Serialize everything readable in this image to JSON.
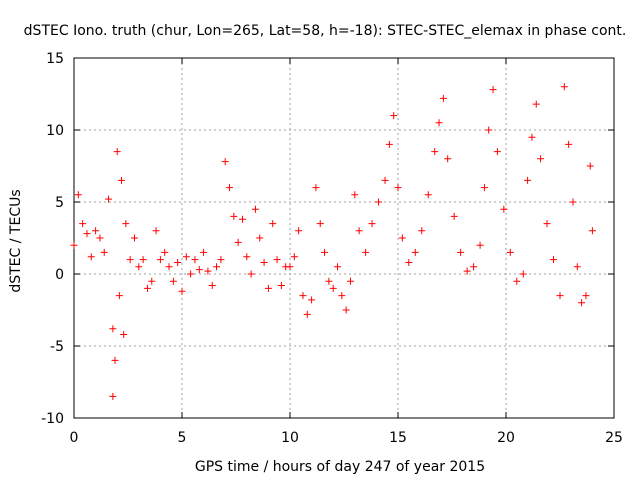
{
  "chart_data": {
    "type": "scatter",
    "title": "dSTEC Iono. truth (chur, Lon=265, Lat=58, h=-18): STEC-STEC_elemax in phase cont.",
    "xlabel": "GPS time / hours of day 247 of year 2015",
    "ylabel": "dSTEC  / TECUs",
    "xlim": [
      0,
      25
    ],
    "ylim": [
      -10,
      15
    ],
    "xticks": [
      0,
      5,
      10,
      15,
      20,
      25
    ],
    "yticks": [
      -10,
      -5,
      0,
      5,
      10,
      15
    ],
    "grid": true,
    "legend": "none",
    "marker": "plus",
    "series": [
      {
        "color": "#ff0000",
        "points": [
          [
            0.0,
            2.0
          ],
          [
            0.2,
            5.5
          ],
          [
            0.4,
            3.5
          ],
          [
            0.6,
            2.8
          ],
          [
            0.8,
            1.2
          ],
          [
            1.0,
            3.0
          ],
          [
            1.2,
            2.5
          ],
          [
            1.4,
            1.5
          ],
          [
            1.6,
            5.2
          ],
          [
            1.8,
            -3.8
          ],
          [
            1.8,
            -8.5
          ],
          [
            1.9,
            -6.0
          ],
          [
            2.0,
            8.5
          ],
          [
            2.1,
            -1.5
          ],
          [
            2.2,
            6.5
          ],
          [
            2.3,
            -4.2
          ],
          [
            2.4,
            3.5
          ],
          [
            2.6,
            1.0
          ],
          [
            2.8,
            2.5
          ],
          [
            3.0,
            0.5
          ],
          [
            3.2,
            1.0
          ],
          [
            3.4,
            -1.0
          ],
          [
            3.6,
            -0.5
          ],
          [
            3.8,
            3.0
          ],
          [
            4.0,
            1.0
          ],
          [
            4.2,
            1.5
          ],
          [
            4.4,
            0.5
          ],
          [
            4.6,
            -0.5
          ],
          [
            4.8,
            0.8
          ],
          [
            5.0,
            -1.2
          ],
          [
            5.2,
            1.2
          ],
          [
            5.4,
            0.0
          ],
          [
            5.6,
            1.0
          ],
          [
            5.8,
            0.3
          ],
          [
            6.0,
            1.5
          ],
          [
            6.2,
            0.2
          ],
          [
            6.4,
            -0.8
          ],
          [
            6.6,
            0.5
          ],
          [
            6.8,
            1.0
          ],
          [
            7.0,
            7.8
          ],
          [
            7.2,
            6.0
          ],
          [
            7.4,
            4.0
          ],
          [
            7.6,
            2.2
          ],
          [
            7.8,
            3.8
          ],
          [
            8.0,
            1.2
          ],
          [
            8.2,
            0.0
          ],
          [
            8.4,
            4.5
          ],
          [
            8.6,
            2.5
          ],
          [
            8.8,
            0.8
          ],
          [
            9.0,
            -1.0
          ],
          [
            9.2,
            3.5
          ],
          [
            9.4,
            1.0
          ],
          [
            9.6,
            -0.8
          ],
          [
            9.8,
            0.5
          ],
          [
            10.0,
            0.5
          ],
          [
            10.2,
            1.2
          ],
          [
            10.4,
            3.0
          ],
          [
            10.6,
            -1.5
          ],
          [
            10.8,
            -2.8
          ],
          [
            11.0,
            -1.8
          ],
          [
            11.2,
            6.0
          ],
          [
            11.4,
            3.5
          ],
          [
            11.6,
            1.5
          ],
          [
            11.8,
            -0.5
          ],
          [
            12.0,
            -1.0
          ],
          [
            12.2,
            0.5
          ],
          [
            12.4,
            -1.5
          ],
          [
            12.6,
            -2.5
          ],
          [
            12.8,
            -0.5
          ],
          [
            13.0,
            5.5
          ],
          [
            13.2,
            3.0
          ],
          [
            13.5,
            1.5
          ],
          [
            13.8,
            3.5
          ],
          [
            14.1,
            5.0
          ],
          [
            14.4,
            6.5
          ],
          [
            14.6,
            9.0
          ],
          [
            14.8,
            11.0
          ],
          [
            15.0,
            6.0
          ],
          [
            15.2,
            2.5
          ],
          [
            15.5,
            0.8
          ],
          [
            15.8,
            1.5
          ],
          [
            16.1,
            3.0
          ],
          [
            16.4,
            5.5
          ],
          [
            16.7,
            8.5
          ],
          [
            16.9,
            10.5
          ],
          [
            17.1,
            12.2
          ],
          [
            17.3,
            8.0
          ],
          [
            17.6,
            4.0
          ],
          [
            17.9,
            1.5
          ],
          [
            18.2,
            0.2
          ],
          [
            18.5,
            0.5
          ],
          [
            18.8,
            2.0
          ],
          [
            19.0,
            6.0
          ],
          [
            19.2,
            10.0
          ],
          [
            19.4,
            12.8
          ],
          [
            19.6,
            8.5
          ],
          [
            19.9,
            4.5
          ],
          [
            20.2,
            1.5
          ],
          [
            20.5,
            -0.5
          ],
          [
            20.8,
            0.0
          ],
          [
            21.0,
            6.5
          ],
          [
            21.2,
            9.5
          ],
          [
            21.4,
            11.8
          ],
          [
            21.6,
            8.0
          ],
          [
            21.9,
            3.5
          ],
          [
            22.2,
            1.0
          ],
          [
            22.5,
            -1.5
          ],
          [
            22.7,
            13.0
          ],
          [
            22.9,
            9.0
          ],
          [
            23.1,
            5.0
          ],
          [
            23.3,
            0.5
          ],
          [
            23.5,
            -2.0
          ],
          [
            23.7,
            -1.5
          ],
          [
            23.9,
            7.5
          ],
          [
            24.0,
            3.0
          ]
        ]
      }
    ]
  }
}
